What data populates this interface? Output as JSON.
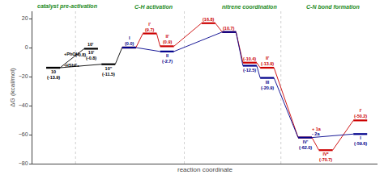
{
  "chart_data": {
    "type": "line",
    "ylabel": "ΔG (kcal/mol)",
    "xlabel": "reaction coordinate",
    "xlim": [
      0,
      100
    ],
    "ylim": [
      -80,
      25
    ],
    "yticks": [
      -80,
      -60,
      -40,
      -20,
      0,
      20
    ],
    "tick_labels": "y",
    "grid": false,
    "series": [
      {
        "color": "#000000",
        "x": [
          6.0,
          17.0
        ],
        "values": [
          -13.9,
          -0.8
        ]
      },
      {
        "color": "#000000",
        "x": [
          6.0,
          22.0,
          28.0
        ],
        "values": [
          -13.9,
          -11.5,
          0.0
        ]
      },
      {
        "color": "#cc0000",
        "x": [
          28.0,
          34.0,
          39.0,
          51.0,
          57.0,
          63.0,
          68.0,
          79.0,
          85.0,
          95.0
        ],
        "values": [
          0.0,
          9.7,
          0.9,
          16.8,
          10.7,
          -10.4,
          -13.9,
          -62.0,
          -70.7,
          -50.2
        ]
      },
      {
        "color": "#00008b",
        "x": [
          28.0,
          39.0,
          57.0,
          63.0,
          68.0,
          79.0,
          95.0
        ],
        "values": [
          0.0,
          -2.7,
          10.7,
          -12.5,
          -20.9,
          -62.0,
          -59.6
        ]
      }
    ],
    "annotations": [
      {
        "text": "I'\n(9.7)",
        "x": 34.0,
        "y": 9.7,
        "position": "above",
        "color": "#cc0000"
      },
      {
        "text": "II'\n(0.9)",
        "x": 39.0,
        "y": 0.9,
        "position": "above",
        "color": "#cc0000"
      },
      {
        "text": "(16.8)",
        "x": 51.0,
        "y": 16.8,
        "position": "above",
        "color": "#cc0000"
      },
      {
        "text": "(10.7)",
        "x": 57.0,
        "y": 10.7,
        "position": "above",
        "color": "#cc0000"
      },
      {
        "text": "(-10.4)",
        "x": 63.0,
        "y": -10.4,
        "position": "above",
        "color": "#cc0000"
      },
      {
        "text": "II'\n(-13.9)",
        "x": 68.0,
        "y": -13.9,
        "position": "above",
        "color": "#cc0000"
      },
      {
        "text": "IV*\n(-70.7)",
        "x": 85.0,
        "y": -70.7,
        "position": "below",
        "color": "#cc0000"
      },
      {
        "text": "I'\n(-50.2)",
        "x": 95.0,
        "y": -50.2,
        "position": "above",
        "color": "#cc0000"
      },
      {
        "text": "I\n(0.0)",
        "x": 28.0,
        "y": 0.0,
        "position": "above",
        "color": "#00008b"
      },
      {
        "text": "II\n(-2.7)",
        "x": 39.0,
        "y": -2.7,
        "position": "below",
        "color": "#00008b"
      },
      {
        "text": "(-12.5)",
        "x": 63.0,
        "y": -12.5,
        "position": "below",
        "color": "#00008b"
      },
      {
        "text": "III\n(-20.9)",
        "x": 68.0,
        "y": -20.9,
        "position": "below",
        "color": "#00008b"
      },
      {
        "text": "IV'\n(-62.0)",
        "x": 79.0,
        "y": -62.0,
        "position": "below",
        "color": "#00008b"
      },
      {
        "text": "I\n(-59.6)",
        "x": 95.0,
        "y": -59.6,
        "position": "below",
        "color": "#00008b"
      },
      {
        "text": "10\n(-13.9)",
        "x": 6.0,
        "y": -13.9,
        "position": "below",
        "color": "#000000"
      },
      {
        "text": "10'\n(-0.8)",
        "x": 17.0,
        "y": -0.8,
        "position": "below",
        "color": "#000000"
      },
      {
        "text": "10''\n(-11.5)",
        "x": 22.0,
        "y": -11.5,
        "position": "below",
        "color": "#000000"
      },
      {
        "text": "10'",
        "x": 17.0,
        "y": -0.8,
        "position": "above",
        "color": "#000000"
      },
      {
        "text": "+PhOH",
        "x": 11.5,
        "y": -7.0,
        "position": "above",
        "color": "#000000"
      },
      {
        "text": "-HSbF₆",
        "x": 11.5,
        "y": -9.5,
        "position": "below",
        "color": "#000000"
      },
      {
        "text": "(-0.8)",
        "x": 14.0,
        "y": -5.0,
        "position": "center",
        "color": "#000000"
      },
      {
        "text": "+ 1a",
        "x": 80.5,
        "y": -56.0,
        "position": "right",
        "color": "#cc0000"
      },
      {
        "text": "- 2a",
        "x": 80.5,
        "y": -59.5,
        "position": "right",
        "color": "#00008b"
      }
    ],
    "sections": [
      {
        "text": "catalyst pre-activation",
        "x": 10,
        "color": "#228B22"
      },
      {
        "text": "C-H activation",
        "x": 35,
        "color": "#228B22"
      },
      {
        "text": "nitrene coordination",
        "x": 63,
        "color": "#228B22"
      },
      {
        "text": "C-N bond formation",
        "x": 87,
        "color": "#228B22"
      }
    ],
    "separators": [
      12.5,
      44.0,
      72.0
    ]
  }
}
